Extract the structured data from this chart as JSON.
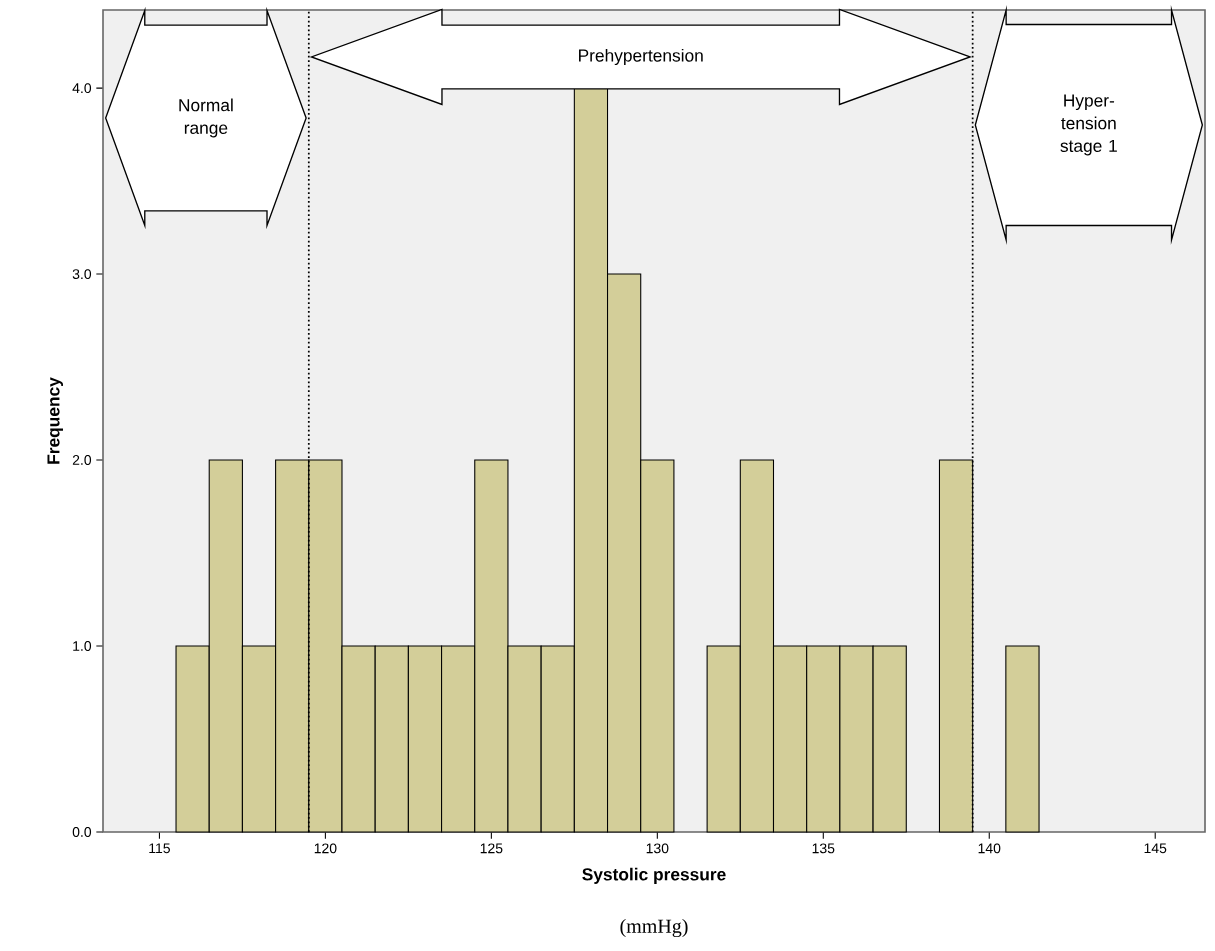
{
  "chart_data": {
    "type": "histogram",
    "xlabel": "Systolic pressure",
    "ylabel": "Frequency",
    "bins": [
      115.5,
      116.5,
      117.5,
      118.5,
      119.5,
      120.5,
      121.5,
      122.5,
      123.5,
      124.5,
      125.5,
      126.5,
      127.5,
      128.5,
      129.5,
      130.5,
      131.5,
      132.5,
      133.5,
      134.5,
      135.5,
      136.5,
      137.5,
      138.5,
      139.5,
      140.5,
      141.5
    ],
    "values": [
      1,
      2,
      1,
      2,
      2,
      1,
      1,
      1,
      1,
      2,
      1,
      1,
      4,
      3,
      2,
      0,
      1,
      2,
      1,
      1,
      1,
      1,
      0,
      2,
      0,
      1
    ],
    "color": "#d3ce99",
    "xlim": [
      113.3,
      146.5
    ],
    "ylim": [
      0,
      4.42
    ],
    "xticks": [
      115,
      120,
      125,
      130,
      135,
      140,
      145
    ],
    "yticks": [
      {
        "value": 0,
        "label": "0.0"
      },
      {
        "value": 1,
        "label": "1.0"
      },
      {
        "value": 2,
        "label": "2.0"
      },
      {
        "value": 3,
        "label": "3.0"
      },
      {
        "value": 4,
        "label": "4.0"
      }
    ],
    "ref_lines": [
      {
        "axis": "x",
        "value": 119.5,
        "line_style": "dotted"
      },
      {
        "axis": "x",
        "value": 139.5,
        "line_style": "dotted"
      }
    ],
    "annotations": [
      "Normal range",
      "Prehypertension",
      "Hyper-tension stage 1",
      "(mmHg)"
    ]
  }
}
